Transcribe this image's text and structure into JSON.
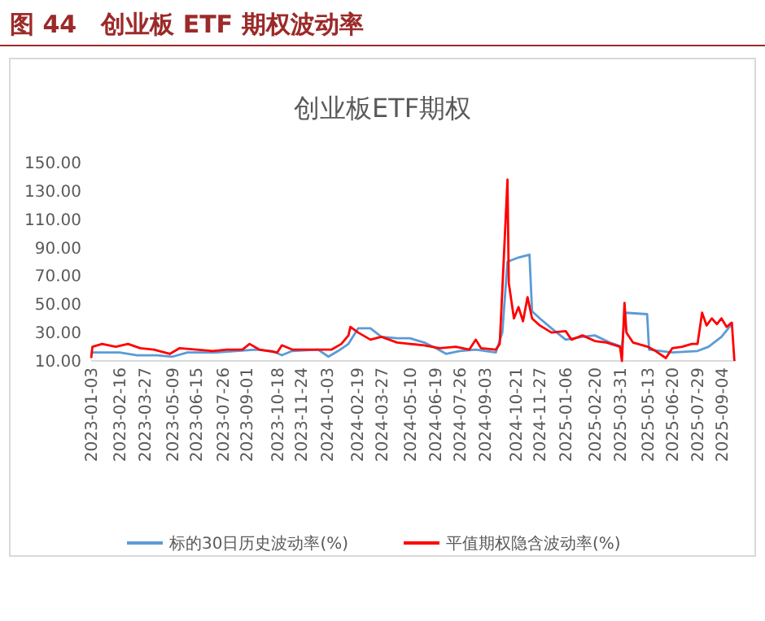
{
  "chart_data": {
    "type": "line",
    "title": "图 44　创业板 ETF 期权波动率",
    "subtitle": "创业板ETF期权",
    "xlim": [
      "2023-01-03",
      "2025-09-26"
    ],
    "xticks": [
      {
        "value": "2023-01-03",
        "label": "2023-01-03"
      },
      {
        "value": "2023-02-16",
        "label": "2023-02-16"
      },
      {
        "value": "2023-03-27",
        "label": "2023-03-27"
      },
      {
        "value": "2023-05-09",
        "label": "2023-05-09"
      },
      {
        "value": "2023-06-15",
        "label": "2023-06-15"
      },
      {
        "value": "2023-07-26",
        "label": "2023-07-26"
      },
      {
        "value": "2023-09-01",
        "label": "2023-09-01"
      },
      {
        "value": "2023-10-18",
        "label": "2023-10-18"
      },
      {
        "value": "2023-11-24",
        "label": "2023-11-24"
      },
      {
        "value": "2024-01-03",
        "label": "2024-01-03"
      },
      {
        "value": "2024-02-19",
        "label": "2024-02-19"
      },
      {
        "value": "2024-03-27",
        "label": "2024-03-27"
      },
      {
        "value": "2024-05-10",
        "label": "2024-05-10"
      },
      {
        "value": "2024-06-19",
        "label": "2024-06-19"
      },
      {
        "value": "2024-07-26",
        "label": "2024-07-26"
      },
      {
        "value": "2024-09-03",
        "label": "2024-09-03"
      },
      {
        "value": "2024-10-21",
        "label": "2024-10-21"
      },
      {
        "value": "2024-11-27",
        "label": "2024-11-27"
      },
      {
        "value": "2025-01-06",
        "label": "2025-01-06"
      },
      {
        "value": "2025-02-20",
        "label": "2025-02-20"
      },
      {
        "value": "2025-03-31",
        "label": "2025-03-31"
      },
      {
        "value": "2025-05-13",
        "label": "2025-05-13"
      },
      {
        "value": "2025-06-20",
        "label": "2025-06-20"
      },
      {
        "value": "2025-07-29",
        "label": "2025-07-29"
      },
      {
        "value": "2025-09-04",
        "label": "2025-09-04"
      }
    ],
    "ylim": [
      10,
      150
    ],
    "yticks": [
      {
        "value": 10,
        "label": "10.00"
      },
      {
        "value": 30,
        "label": "30.00"
      },
      {
        "value": 50,
        "label": "50.00"
      },
      {
        "value": 70,
        "label": "70.00"
      },
      {
        "value": 90,
        "label": "90.00"
      },
      {
        "value": 110,
        "label": "110.00"
      },
      {
        "value": 130,
        "label": "130.00"
      },
      {
        "value": 150,
        "label": "150.00"
      }
    ],
    "grid": false,
    "legend": "bottom",
    "marker": "none",
    "line_style": "solid",
    "series": [
      {
        "name": "标的30日历史波动率(%)",
        "color": "#5b9bd5",
        "x": [
          "2023-01-03",
          "2023-02-16",
          "2023-03-15",
          "2023-04-15",
          "2023-05-09",
          "2023-06-01",
          "2023-07-15",
          "2023-08-15",
          "2023-09-15",
          "2023-10-10",
          "2023-10-25",
          "2023-11-10",
          "2023-12-20",
          "2024-01-05",
          "2024-01-20",
          "2024-02-05",
          "2024-02-20",
          "2024-03-10",
          "2024-03-27",
          "2024-04-20",
          "2024-05-10",
          "2024-06-01",
          "2024-06-19",
          "2024-07-05",
          "2024-07-26",
          "2024-08-20",
          "2024-09-20",
          "2024-09-30",
          "2024-10-08",
          "2024-10-25",
          "2024-11-11",
          "2024-11-15",
          "2024-11-27",
          "2024-12-15",
          "2025-01-06",
          "2025-02-01",
          "2025-02-20",
          "2025-03-15",
          "2025-04-03",
          "2025-04-08",
          "2025-05-12",
          "2025-05-15",
          "2025-06-20",
          "2025-07-29",
          "2025-08-15",
          "2025-09-04",
          "2025-09-20"
        ],
        "values": [
          16,
          16,
          14,
          14,
          13,
          16,
          16,
          17,
          18,
          17,
          14,
          17,
          18,
          13,
          17,
          22,
          33,
          33,
          27,
          26,
          26,
          23,
          19,
          15,
          17,
          18,
          16,
          30,
          80,
          83,
          85,
          45,
          40,
          33,
          25,
          27,
          28,
          23,
          20,
          44,
          43,
          18,
          16,
          17,
          20,
          27,
          36
        ]
      },
      {
        "name": "平值期权隐含波动率(%)",
        "color": "#ff0000",
        "x": [
          "2023-01-03",
          "2023-01-05",
          "2023-01-20",
          "2023-02-10",
          "2023-03-01",
          "2023-03-20",
          "2023-04-10",
          "2023-05-05",
          "2023-05-20",
          "2023-06-15",
          "2023-07-10",
          "2023-08-01",
          "2023-08-25",
          "2023-09-05",
          "2023-09-20",
          "2023-10-18",
          "2023-10-25",
          "2023-11-10",
          "2023-12-10",
          "2024-01-10",
          "2024-01-25",
          "2024-02-05",
          "2024-02-08",
          "2024-02-20",
          "2024-03-10",
          "2024-03-27",
          "2024-04-20",
          "2024-05-10",
          "2024-06-01",
          "2024-06-25",
          "2024-07-20",
          "2024-08-10",
          "2024-08-20",
          "2024-08-28",
          "2024-09-20",
          "2024-09-26",
          "2024-09-30",
          "2024-10-08",
          "2024-10-10",
          "2024-10-18",
          "2024-10-25",
          "2024-11-01",
          "2024-11-08",
          "2024-11-15",
          "2024-11-27",
          "2024-12-15",
          "2025-01-06",
          "2025-01-15",
          "2025-02-01",
          "2025-02-20",
          "2025-03-10",
          "2025-03-31",
          "2025-04-03",
          "2025-04-07",
          "2025-04-10",
          "2025-04-20",
          "2025-05-13",
          "2025-05-25",
          "2025-06-10",
          "2025-06-20",
          "2025-07-05",
          "2025-07-20",
          "2025-07-29",
          "2025-08-05",
          "2025-08-12",
          "2025-08-20",
          "2025-08-28",
          "2025-09-04",
          "2025-09-12",
          "2025-09-20",
          "2025-09-24"
        ],
        "values": [
          12,
          20,
          22,
          20,
          22,
          19,
          18,
          15,
          19,
          18,
          17,
          18,
          18,
          22,
          18,
          16,
          21,
          18,
          18,
          18,
          22,
          28,
          34,
          30,
          25,
          27,
          23,
          22,
          21,
          19,
          20,
          18,
          25,
          19,
          18,
          22,
          60,
          138,
          65,
          40,
          48,
          38,
          55,
          40,
          35,
          30,
          31,
          25,
          28,
          24,
          23,
          20,
          10,
          51,
          30,
          23,
          20,
          17,
          12,
          19,
          20,
          22,
          22,
          44,
          35,
          40,
          36,
          40,
          34,
          37,
          10
        ]
      }
    ]
  }
}
